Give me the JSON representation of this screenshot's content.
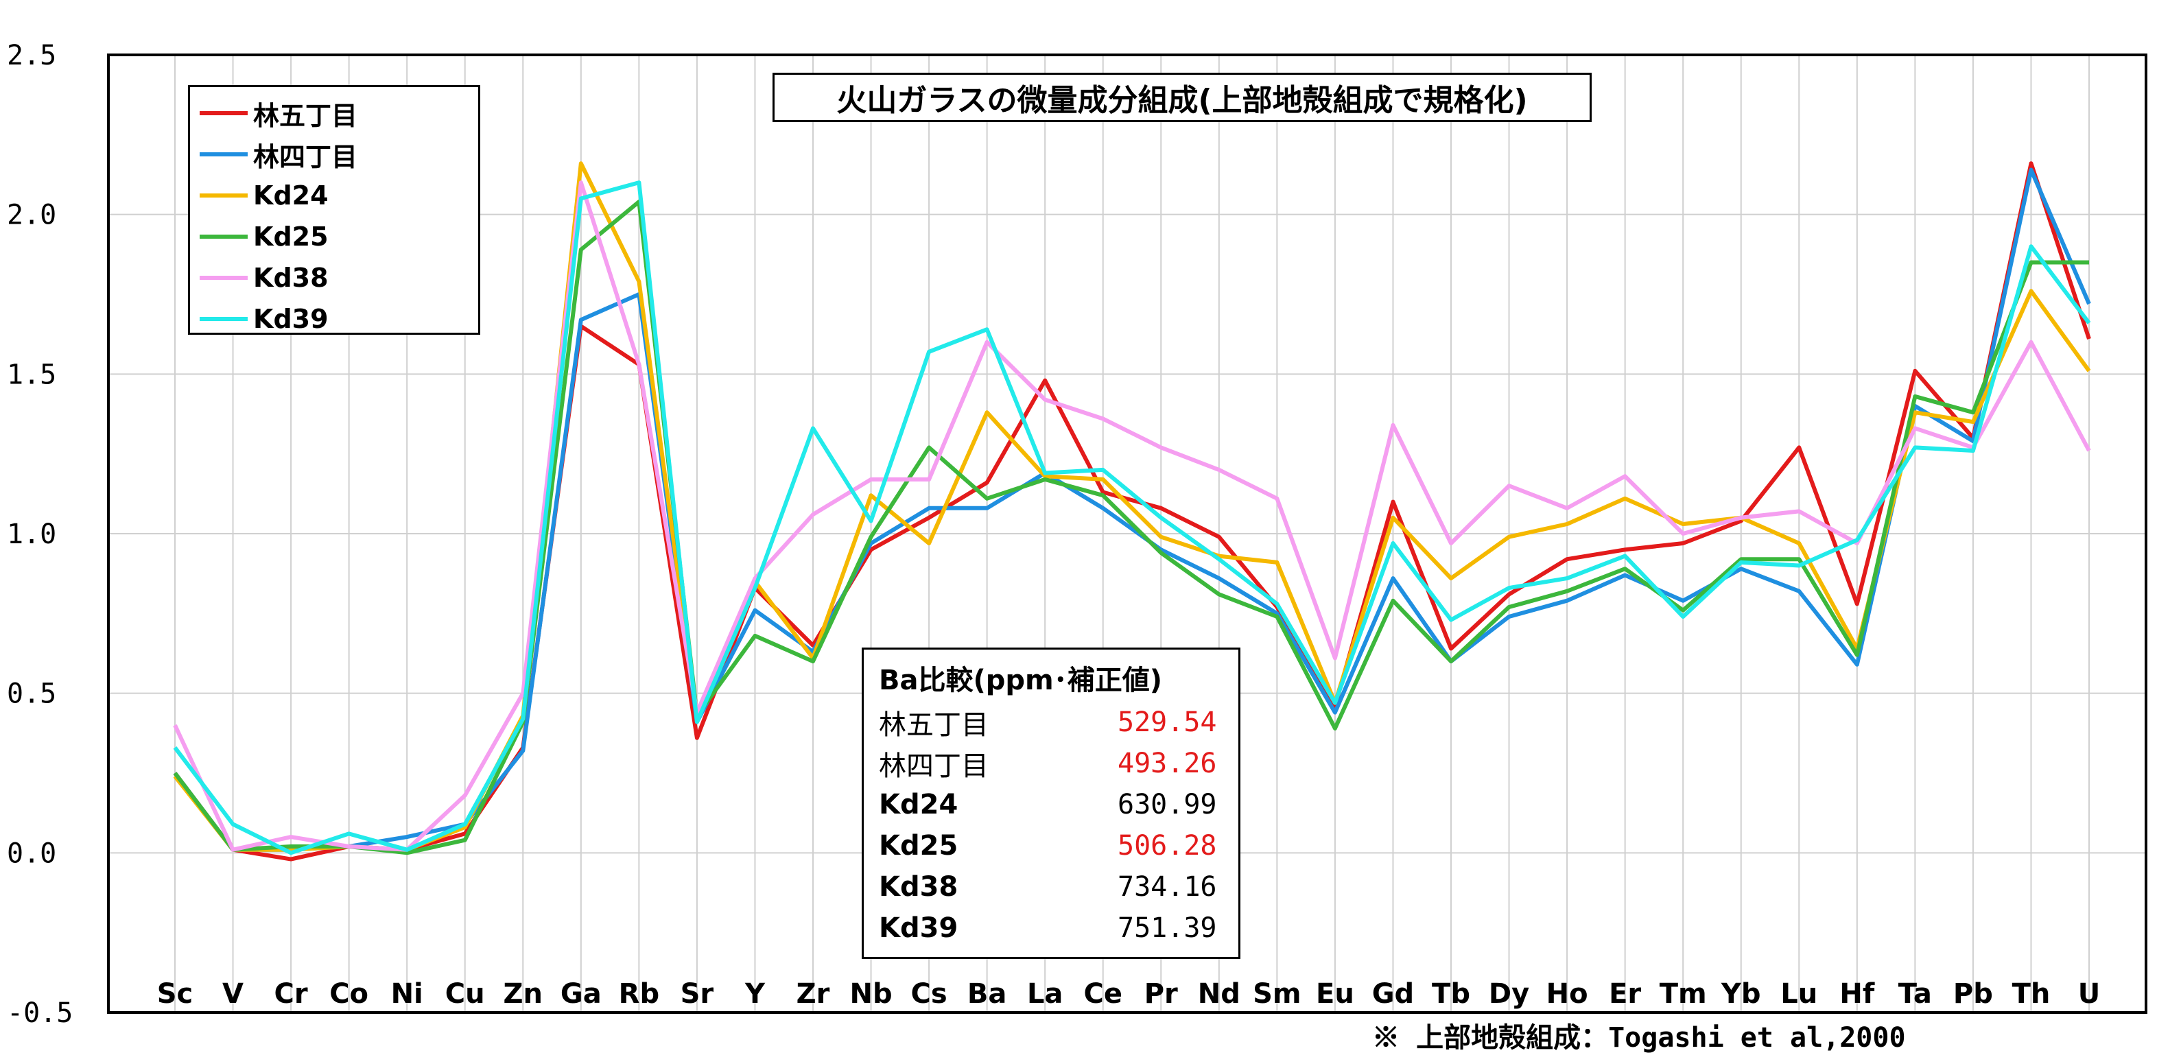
{
  "chart_data": {
    "type": "line",
    "title": "火山ガラスの微量成分組成(上部地殻組成で規格化)",
    "categories": [
      "Sc",
      "V",
      "Cr",
      "Co",
      "Ni",
      "Cu",
      "Zn",
      "Ga",
      "Rb",
      "Sr",
      "Y",
      "Zr",
      "Nb",
      "Cs",
      "Ba",
      "La",
      "Ce",
      "Pr",
      "Nd",
      "Sm",
      "Eu",
      "Gd",
      "Tb",
      "Dy",
      "Ho",
      "Er",
      "Tm",
      "Yb",
      "Lu",
      "Hf",
      "Ta",
      "Pb",
      "Th",
      "U"
    ],
    "ylim": [
      -0.5,
      2.5
    ],
    "yticks": [
      "2.5",
      "2.0",
      "1.5",
      "1.0",
      "0.5",
      "0.0",
      "-0.5"
    ],
    "ytick_values": [
      2.5,
      2.0,
      1.5,
      1.0,
      0.5,
      0.0,
      -0.5
    ],
    "grid": true,
    "legend_position": "top-left",
    "series": [
      {
        "name": "林五丁目",
        "color": "#e31b1b",
        "values": [
          0.25,
          0.01,
          -0.02,
          0.02,
          0.01,
          0.06,
          0.33,
          1.65,
          1.53,
          0.36,
          0.83,
          0.65,
          0.95,
          1.05,
          1.16,
          1.48,
          1.13,
          1.08,
          0.99,
          0.77,
          0.46,
          1.1,
          0.64,
          0.81,
          0.92,
          0.95,
          0.97,
          1.04,
          1.27,
          0.78,
          1.51,
          1.3,
          2.16,
          1.61
        ]
      },
      {
        "name": "林四丁目",
        "color": "#1f8fe0",
        "values": [
          0.25,
          0.01,
          0.01,
          0.02,
          0.05,
          0.09,
          0.32,
          1.67,
          1.75,
          0.41,
          0.76,
          0.63,
          0.97,
          1.08,
          1.08,
          1.19,
          1.08,
          0.95,
          0.86,
          0.75,
          0.44,
          0.86,
          0.6,
          0.74,
          0.79,
          0.87,
          0.79,
          0.89,
          0.82,
          0.59,
          1.4,
          1.29,
          2.14,
          1.72
        ]
      },
      {
        "name": "Kd24",
        "color": "#f5b800",
        "values": [
          0.24,
          0.01,
          0.01,
          0.02,
          0.01,
          0.08,
          0.43,
          2.16,
          1.79,
          0.43,
          0.85,
          0.61,
          1.12,
          0.97,
          1.38,
          1.18,
          1.17,
          0.99,
          0.93,
          0.91,
          0.47,
          1.05,
          0.86,
          0.99,
          1.03,
          1.11,
          1.03,
          1.05,
          0.97,
          0.64,
          1.38,
          1.35,
          1.76,
          1.51
        ]
      },
      {
        "name": "Kd25",
        "color": "#3cb73c",
        "values": [
          0.25,
          0.01,
          0.02,
          0.02,
          0.0,
          0.04,
          0.41,
          1.89,
          2.04,
          0.43,
          0.68,
          0.6,
          0.99,
          1.27,
          1.11,
          1.17,
          1.12,
          0.94,
          0.81,
          0.74,
          0.39,
          0.79,
          0.6,
          0.77,
          0.82,
          0.89,
          0.76,
          0.92,
          0.92,
          0.62,
          1.43,
          1.38,
          1.85,
          1.85
        ]
      },
      {
        "name": "Kd38",
        "color": "#f59ef0",
        "values": [
          0.4,
          0.01,
          0.05,
          0.02,
          0.01,
          0.18,
          0.5,
          2.1,
          1.53,
          0.44,
          0.86,
          1.06,
          1.17,
          1.17,
          1.6,
          1.42,
          1.36,
          1.27,
          1.2,
          1.11,
          0.61,
          1.34,
          0.97,
          1.15,
          1.08,
          1.18,
          1.0,
          1.05,
          1.07,
          0.97,
          1.33,
          1.27,
          1.6,
          1.26
        ]
      },
      {
        "name": "Kd39",
        "color": "#22eaea",
        "values": [
          0.33,
          0.09,
          0.0,
          0.06,
          0.01,
          0.09,
          0.42,
          2.05,
          2.1,
          0.41,
          0.83,
          1.33,
          1.04,
          1.57,
          1.64,
          1.19,
          1.2,
          1.05,
          0.92,
          0.78,
          0.47,
          0.97,
          0.73,
          0.83,
          0.86,
          0.93,
          0.74,
          0.91,
          0.9,
          0.98,
          1.27,
          1.26,
          1.9,
          1.66
        ]
      }
    ]
  },
  "ba_table": {
    "title": "Ba比較(ppm･補正値)",
    "rows": [
      {
        "name": "林五丁目",
        "value": "529.54",
        "color": "#e31b1b",
        "bold": false
      },
      {
        "name": "林四丁目",
        "value": "493.26",
        "color": "#e31b1b",
        "bold": false
      },
      {
        "name": "Kd24",
        "value": "630.99",
        "color": "#000000",
        "bold": true
      },
      {
        "name": "Kd25",
        "value": "506.28",
        "color": "#e31b1b",
        "bold": true
      },
      {
        "name": "Kd38",
        "value": "734.16",
        "color": "#000000",
        "bold": true
      },
      {
        "name": "Kd39",
        "value": "751.39",
        "color": "#000000",
        "bold": true
      }
    ]
  },
  "footnote": "※ 上部地殻組成：Togashi et al,2000"
}
